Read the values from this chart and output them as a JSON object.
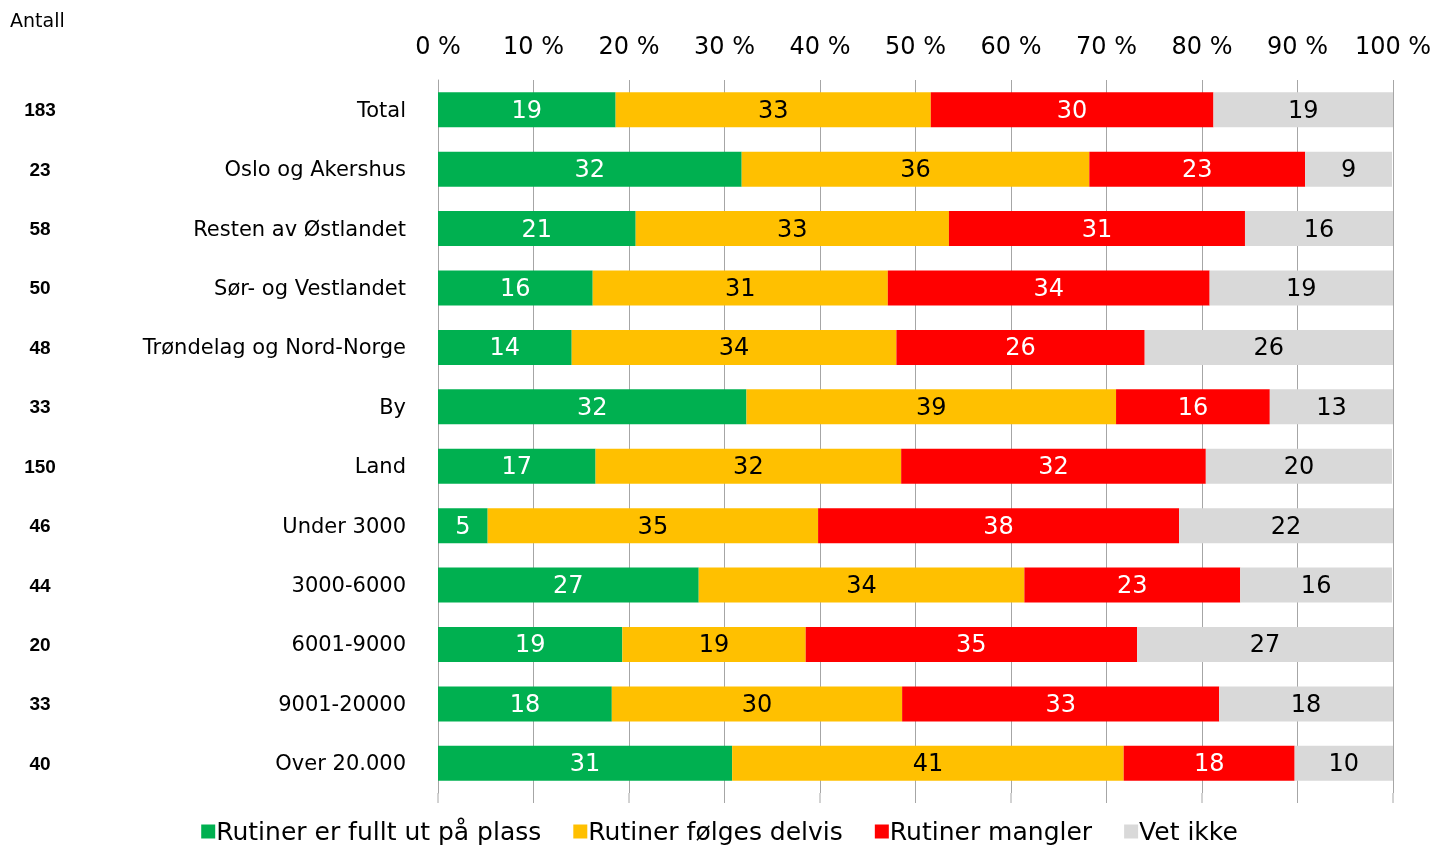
{
  "chart_data": {
    "type": "bar",
    "orientation": "horizontal",
    "stacked": true,
    "grid": "x",
    "legend": "bottom",
    "categories": [
      "Total",
      "Oslo og Akershus",
      "Resten av Østlandet",
      "Sør- og Vestlandet",
      "Trøndelag og Nord-Norge",
      "By",
      "Land",
      "Under 3000",
      "3000-6000",
      "6001-9000",
      "9001-20000",
      "Over 20.000"
    ],
    "xlim": [
      0,
      100
    ],
    "xticks": [
      {
        "value": 0,
        "label": "0 %"
      },
      {
        "value": 10,
        "label": "10 %"
      },
      {
        "value": 20,
        "label": "20 %"
      },
      {
        "value": 30,
        "label": "30 %"
      },
      {
        "value": 40,
        "label": "40 %"
      },
      {
        "value": 50,
        "label": "50 %"
      },
      {
        "value": 60,
        "label": "60 %"
      },
      {
        "value": 70,
        "label": "70 %"
      },
      {
        "value": 80,
        "label": "80 %"
      },
      {
        "value": 90,
        "label": "90 %"
      },
      {
        "value": 100,
        "label": "100 %"
      }
    ],
    "series": [
      {
        "name": "Rutiner er fullt ut på plass",
        "color": "#00b050",
        "values": [
          18.6,
          31.8,
          20.7,
          16.2,
          14.0,
          32.3,
          16.5,
          5.2,
          27.3,
          19.3,
          18.2,
          30.8
        ],
        "value_labels": [
          "19",
          "32",
          "21",
          "16",
          "14",
          "32",
          "17",
          "5",
          "27",
          "19",
          "18",
          "31"
        ]
      },
      {
        "name": "Rutiner følges delvis",
        "color": "#ffc000",
        "values": [
          33.0,
          36.4,
          32.8,
          30.9,
          34.0,
          38.7,
          32.0,
          34.6,
          34.1,
          19.2,
          30.4,
          41.0
        ],
        "value_labels": [
          "33",
          "36",
          "33",
          "31",
          "34",
          "39",
          "32",
          "35",
          "34",
          "19",
          "30",
          "41"
        ]
      },
      {
        "name": "Rutiner mangler",
        "color": "#ff0000",
        "values": [
          29.6,
          22.6,
          31.0,
          33.7,
          26.0,
          16.1,
          31.9,
          37.8,
          22.6,
          34.7,
          33.2,
          17.9
        ],
        "value_labels": [
          "30",
          "23",
          "31",
          "34",
          "26",
          "16",
          "32",
          "38",
          "23",
          "35",
          "33",
          "18"
        ]
      },
      {
        "name": "Vet ikke",
        "color": "#d9d9d9",
        "values": [
          18.8,
          9.1,
          15.5,
          19.2,
          26.0,
          12.9,
          19.5,
          22.4,
          15.9,
          26.9,
          18.2,
          10.3
        ],
        "value_labels": [
          "19",
          "9",
          "16",
          "19",
          "26",
          "13",
          "20",
          "22",
          "16",
          "27",
          "18",
          "10"
        ]
      }
    ],
    "annotations": [
      "Antall",
      "183",
      "23",
      "58",
      "50",
      "48",
      "33",
      "150",
      "46",
      "44",
      "20",
      "33",
      "40"
    ]
  }
}
